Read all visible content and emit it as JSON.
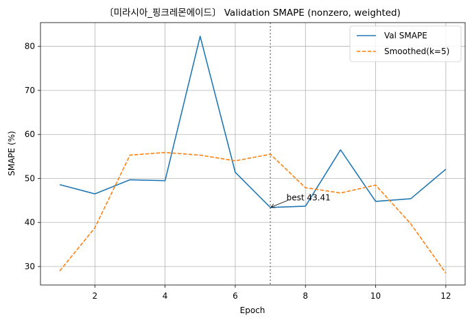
{
  "chart_data": {
    "type": "line",
    "title": "〔미라시아_핑크레몬에이드〕 Validation SMAPE (nonzero, weighted)",
    "xlabel": "Epoch",
    "ylabel": "SMAPE (%)",
    "x": [
      1,
      2,
      3,
      4,
      5,
      6,
      7,
      8,
      9,
      10,
      11,
      12
    ],
    "xlim": [
      0.45,
      12.55
    ],
    "ylim": [
      25.8,
      85.4
    ],
    "xticks": [
      2,
      4,
      6,
      8,
      10,
      12
    ],
    "yticks": [
      30,
      40,
      50,
      60,
      70,
      80
    ],
    "grid": true,
    "legend_position": "top-right",
    "series": [
      {
        "name": "Val SMAPE",
        "color": "#1f77b4",
        "style": "solid",
        "values": [
          48.6,
          46.5,
          49.7,
          49.5,
          82.3,
          51.4,
          43.41,
          43.7,
          56.5,
          44.8,
          45.4,
          52.1
        ]
      },
      {
        "name": "Smoothed(k=5)",
        "color": "#ff7f0e",
        "style": "dashed",
        "values": [
          29.0,
          38.8,
          55.3,
          55.9,
          55.3,
          54.0,
          55.5,
          47.9,
          46.7,
          48.5,
          39.7,
          28.5
        ]
      }
    ],
    "vline": {
      "x": 7,
      "color": "#808080",
      "style": "dotted"
    },
    "annotation": {
      "text": "best 43.41",
      "x": 7,
      "y": 43.41,
      "text_x": 7.5,
      "text_y": 45.5
    }
  }
}
